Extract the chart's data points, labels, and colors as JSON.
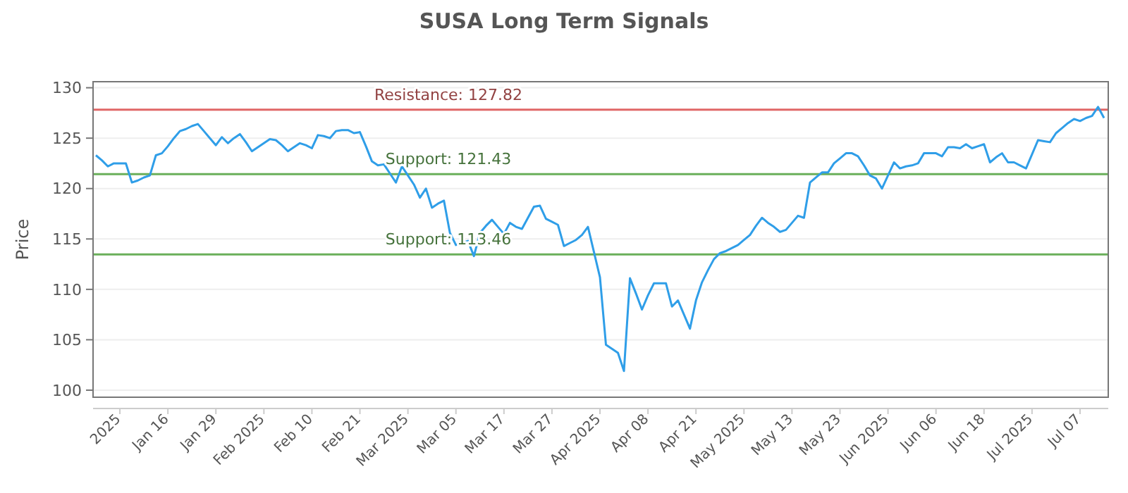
{
  "chart_data": {
    "type": "line",
    "title": "SUSA Long Term Signals",
    "ylabel": "Price",
    "categories": [
      null,
      null,
      null,
      null,
      "2025",
      null,
      null,
      null,
      null,
      null,
      null,
      null,
      "Jan 16",
      null,
      null,
      null,
      null,
      null,
      null,
      null,
      "Jan 29",
      null,
      null,
      null,
      null,
      null,
      null,
      null,
      "Feb 2025",
      null,
      null,
      null,
      null,
      null,
      null,
      null,
      "Feb 10",
      null,
      null,
      null,
      null,
      null,
      null,
      null,
      "Feb 21",
      null,
      null,
      null,
      null,
      null,
      null,
      null,
      "Mar 2025",
      null,
      null,
      null,
      null,
      null,
      null,
      null,
      "Mar 05",
      null,
      null,
      null,
      null,
      null,
      null,
      null,
      "Mar 17",
      null,
      null,
      null,
      null,
      null,
      null,
      null,
      "Mar 27",
      null,
      null,
      null,
      null,
      null,
      null,
      null,
      "Apr 2025",
      null,
      null,
      null,
      null,
      null,
      null,
      null,
      "Apr 08",
      null,
      null,
      null,
      null,
      null,
      null,
      null,
      "Apr 21",
      null,
      null,
      null,
      null,
      null,
      null,
      null,
      "May 2025",
      null,
      null,
      null,
      null,
      null,
      null,
      null,
      "May 13",
      null,
      null,
      null,
      null,
      null,
      null,
      null,
      "May 23",
      null,
      null,
      null,
      null,
      null,
      null,
      null,
      "Jun 2025",
      null,
      null,
      null,
      null,
      null,
      null,
      null,
      "Jun 06",
      null,
      null,
      null,
      null,
      null,
      null,
      null,
      "Jun 18",
      null,
      null,
      null,
      null,
      null,
      null,
      null,
      "Jul 2025",
      null,
      null,
      null,
      null,
      null,
      null,
      null,
      "Jul 07",
      null,
      null,
      null,
      null
    ],
    "ylim": [
      99.3,
      130.6
    ],
    "yticks": [
      100,
      105,
      110,
      115,
      120,
      125,
      130
    ],
    "grid": "y",
    "marker": "none",
    "line_style": "solid",
    "series": [
      {
        "color": "#2f9ee8",
        "values": [
          123.3,
          122.8,
          122.2,
          122.5,
          122.5,
          122.5,
          120.6,
          120.8,
          121.1,
          121.3,
          123.3,
          123.5,
          124.2,
          125.0,
          125.7,
          125.9,
          126.2,
          126.4,
          125.7,
          125.0,
          124.3,
          125.1,
          124.5,
          125.0,
          125.4,
          124.6,
          123.7,
          124.1,
          124.5,
          124.9,
          124.8,
          124.3,
          123.7,
          124.1,
          124.5,
          124.3,
          124.0,
          125.3,
          125.2,
          125.0,
          125.7,
          125.8,
          125.8,
          125.5,
          125.6,
          124.2,
          122.7,
          122.3,
          122.4,
          121.5,
          120.6,
          122.2,
          121.3,
          120.4,
          119.1,
          120.0,
          118.1,
          118.5,
          118.8,
          115.6,
          114.4,
          114.6,
          114.8,
          113.3,
          115.6,
          116.3,
          116.9,
          116.2,
          115.5,
          116.6,
          116.2,
          116.0,
          117.1,
          118.2,
          118.3,
          117.0,
          116.7,
          116.4,
          114.3,
          114.6,
          114.9,
          115.4,
          116.2,
          113.7,
          111.2,
          104.5,
          104.1,
          103.7,
          101.9,
          111.1,
          109.6,
          108.0,
          109.4,
          110.6,
          110.6,
          110.6,
          108.3,
          108.9,
          107.5,
          106.1,
          108.9,
          110.7,
          111.9,
          113.0,
          113.6,
          113.8,
          114.1,
          114.4,
          114.9,
          115.4,
          116.3,
          117.1,
          116.6,
          116.2,
          115.7,
          115.9,
          116.6,
          117.3,
          117.1,
          120.6,
          121.1,
          121.6,
          121.6,
          122.5,
          123.0,
          123.5,
          123.5,
          123.2,
          122.3,
          121.3,
          121.0,
          120.0,
          121.3,
          122.6,
          122.0,
          122.2,
          122.3,
          122.5,
          123.5,
          123.5,
          123.5,
          123.2,
          124.1,
          124.1,
          124.0,
          124.4,
          124.0,
          124.2,
          124.4,
          122.6,
          123.1,
          123.5,
          122.6,
          122.6,
          122.3,
          122.0,
          123.4,
          124.8,
          124.7,
          124.6,
          125.5,
          126.0,
          126.5,
          126.9,
          126.7,
          127.0,
          127.2,
          128.1,
          127.0
        ]
      }
    ],
    "ref_lines": [
      {
        "axis": "y",
        "value": 127.82,
        "label": "Resistance: 127.82",
        "color": "#e06666"
      },
      {
        "axis": "y",
        "value": 121.43,
        "label": "Support: 121.43",
        "color": "#6aaf5a"
      },
      {
        "axis": "y",
        "value": 113.46,
        "label": "Support: 113.46",
        "color": "#6aaf5a"
      }
    ]
  }
}
